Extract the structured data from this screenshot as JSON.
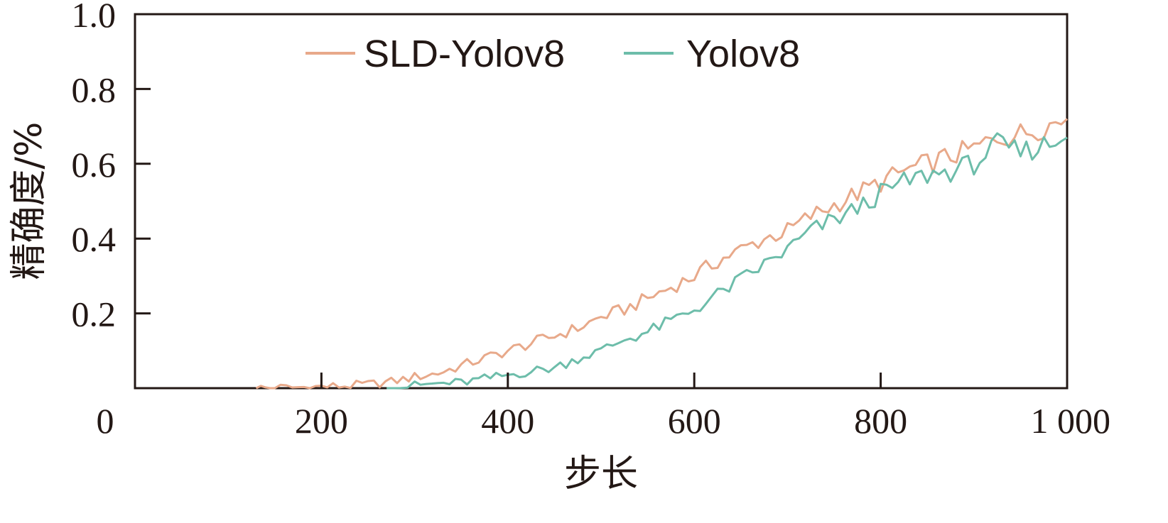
{
  "chart_data": {
    "type": "line",
    "xlabel": "步长",
    "ylabel": "精确度/%",
    "xlim": [
      0,
      1000
    ],
    "ylim": [
      0,
      1.0
    ],
    "x_ticks": [
      0,
      200,
      400,
      600,
      800,
      1000
    ],
    "x_tick_labels": [
      "0",
      "200",
      "400",
      "600",
      "800",
      "1 000"
    ],
    "y_ticks": [
      0.2,
      0.4,
      0.6,
      0.8,
      1.0
    ],
    "y_tick_labels": [
      "0.2",
      "0.4",
      "0.6",
      "0.8",
      "1.0"
    ],
    "grid": false,
    "legend_position": "top",
    "series": [
      {
        "name": "SLD-Yolov8",
        "color": "#E8A98A",
        "x": [
          130,
          150,
          175,
          200,
          225,
          250,
          275,
          300,
          325,
          350,
          375,
          400,
          425,
          450,
          475,
          500,
          525,
          550,
          575,
          600,
          625,
          650,
          675,
          700,
          725,
          750,
          775,
          800,
          825,
          850,
          875,
          900,
          925,
          950,
          975,
          1000
        ],
        "y": [
          0.0,
          0.001,
          0.002,
          0.004,
          0.006,
          0.01,
          0.017,
          0.03,
          0.04,
          0.06,
          0.08,
          0.1,
          0.12,
          0.14,
          0.16,
          0.19,
          0.21,
          0.24,
          0.27,
          0.3,
          0.34,
          0.37,
          0.4,
          0.42,
          0.46,
          0.49,
          0.52,
          0.55,
          0.58,
          0.6,
          0.62,
          0.64,
          0.67,
          0.68,
          0.7,
          0.72
        ]
      },
      {
        "name": "Yolov8",
        "color": "#6DBDAA",
        "x": [
          270,
          300,
          325,
          350,
          375,
          400,
          425,
          450,
          475,
          500,
          525,
          550,
          575,
          600,
          625,
          650,
          675,
          700,
          725,
          750,
          775,
          800,
          825,
          850,
          875,
          900,
          925,
          950,
          975,
          1000
        ],
        "y": [
          0.0,
          0.007,
          0.012,
          0.015,
          0.025,
          0.035,
          0.045,
          0.055,
          0.08,
          0.1,
          0.13,
          0.15,
          0.18,
          0.21,
          0.25,
          0.29,
          0.33,
          0.37,
          0.42,
          0.45,
          0.48,
          0.52,
          0.55,
          0.57,
          0.58,
          0.6,
          0.65,
          0.63,
          0.65,
          0.67
        ]
      }
    ]
  }
}
